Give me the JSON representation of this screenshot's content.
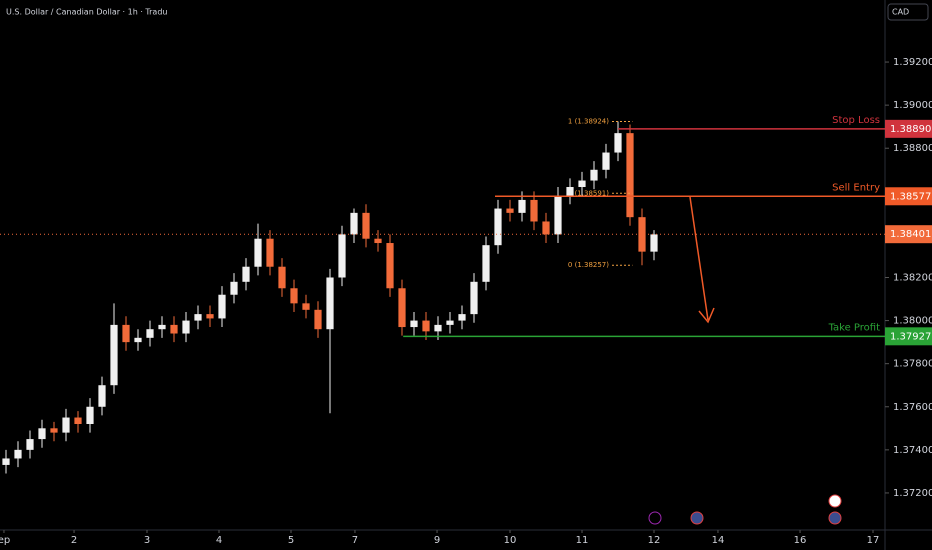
{
  "chart_data": {
    "type": "candlestick",
    "title": "U.S. Dollar / Canadian Dollar · 1h · Tradu",
    "currency": "CAD",
    "up_color": "#f0f0f0",
    "down_color": "#f26b3a",
    "xlim": [
      0,
      73.75
    ],
    "ylim": [
      1.37028,
      1.39488
    ],
    "xticks": [
      {
        "value": 0.33,
        "label": "ep"
      },
      {
        "value": 6.17,
        "label": "2"
      },
      {
        "value": 12.25,
        "label": "3"
      },
      {
        "value": 18.25,
        "label": "4"
      },
      {
        "value": 24.25,
        "label": "5"
      },
      {
        "value": 29.58,
        "label": "7"
      },
      {
        "value": 36.42,
        "label": "9"
      },
      {
        "value": 42.5,
        "label": "10"
      },
      {
        "value": 48.5,
        "label": "11"
      },
      {
        "value": 54.5,
        "label": "12"
      },
      {
        "value": 59.83,
        "label": "14"
      },
      {
        "value": 66.67,
        "label": "16"
      },
      {
        "value": 72.75,
        "label": "17"
      }
    ],
    "yticks": [
      {
        "value": 1.392,
        "label": "1.39200"
      },
      {
        "value": 1.39,
        "label": "1.39000"
      },
      {
        "value": 1.388,
        "label": "1.38800"
      },
      {
        "value": 1.382,
        "label": "1.38200"
      },
      {
        "value": 1.38,
        "label": "1.38000"
      },
      {
        "value": 1.378,
        "label": "1.37800"
      },
      {
        "value": 1.376,
        "label": "1.37600"
      },
      {
        "value": 1.374,
        "label": "1.37400"
      },
      {
        "value": 1.372,
        "label": "1.37200"
      }
    ],
    "candles": {
      "x": [
        0.5,
        1.5,
        2.5,
        3.5,
        4.5,
        5.5,
        6.5,
        7.5,
        8.5,
        9.5,
        10.5,
        11.5,
        12.5,
        13.5,
        14.5,
        15.5,
        16.5,
        17.5,
        18.5,
        19.5,
        20.5,
        21.5,
        22.5,
        23.5,
        24.5,
        25.5,
        26.5,
        27.5,
        28.5,
        29.5,
        30.5,
        31.5,
        32.5,
        33.5,
        34.5,
        35.5,
        36.5,
        37.5,
        38.5,
        39.5,
        40.5,
        41.5,
        42.5,
        43.5,
        44.5,
        45.5,
        46.5,
        47.5,
        48.5,
        49.5,
        50.5,
        51.5,
        52.5,
        53.5,
        54.5
      ],
      "open": [
        1.3733,
        1.3736,
        1.374,
        1.3745,
        1.375,
        1.3748,
        1.3755,
        1.3752,
        1.376,
        1.377,
        1.3798,
        1.379,
        1.3792,
        1.3796,
        1.3798,
        1.3794,
        1.38,
        1.3803,
        1.3801,
        1.3812,
        1.3818,
        1.3825,
        1.3838,
        1.3825,
        1.3815,
        1.3808,
        1.3805,
        1.3796,
        1.382,
        1.384,
        1.385,
        1.3838,
        1.3836,
        1.3815,
        1.3797,
        1.38,
        1.3795,
        1.3798,
        1.38,
        1.3803,
        1.3818,
        1.3835,
        1.3852,
        1.385,
        1.3856,
        1.3846,
        1.384,
        1.3858,
        1.3862,
        1.3865,
        1.387,
        1.3878,
        1.3887,
        1.3848,
        1.3832
      ],
      "high": [
        1.374,
        1.3744,
        1.3749,
        1.3754,
        1.3753,
        1.3759,
        1.3758,
        1.3764,
        1.3774,
        1.3808,
        1.3802,
        1.3796,
        1.38,
        1.3802,
        1.3802,
        1.3804,
        1.3807,
        1.3807,
        1.3816,
        1.3822,
        1.3829,
        1.3845,
        1.3842,
        1.3829,
        1.3819,
        1.3812,
        1.3809,
        1.3824,
        1.3844,
        1.3852,
        1.3854,
        1.3842,
        1.384,
        1.3819,
        1.3804,
        1.3804,
        1.3802,
        1.3804,
        1.3807,
        1.3822,
        1.3839,
        1.3856,
        1.3856,
        1.386,
        1.386,
        1.385,
        1.3862,
        1.3866,
        1.3869,
        1.3874,
        1.3882,
        1.38924,
        1.3891,
        1.3852,
        1.3842
      ],
      "low": [
        1.3729,
        1.3732,
        1.3736,
        1.3741,
        1.3744,
        1.3744,
        1.3748,
        1.3748,
        1.3756,
        1.3766,
        1.3786,
        1.3786,
        1.3788,
        1.3792,
        1.379,
        1.379,
        1.3796,
        1.3797,
        1.3797,
        1.3808,
        1.3814,
        1.3821,
        1.3821,
        1.3811,
        1.3804,
        1.3801,
        1.3792,
        1.3757,
        1.3816,
        1.3836,
        1.3834,
        1.3832,
        1.3811,
        1.3793,
        1.3793,
        1.3791,
        1.3791,
        1.3794,
        1.3796,
        1.3799,
        1.3814,
        1.3831,
        1.3846,
        1.3846,
        1.3842,
        1.3836,
        1.3836,
        1.3854,
        1.3858,
        1.3861,
        1.3866,
        1.3874,
        1.3844,
        1.38257,
        1.3828
      ],
      "close": [
        1.3736,
        1.374,
        1.3745,
        1.375,
        1.3748,
        1.3755,
        1.3752,
        1.376,
        1.377,
        1.3798,
        1.379,
        1.3792,
        1.3796,
        1.3798,
        1.3794,
        1.38,
        1.3803,
        1.3801,
        1.3812,
        1.3818,
        1.3825,
        1.3838,
        1.3825,
        1.3815,
        1.3808,
        1.3805,
        1.3796,
        1.382,
        1.384,
        1.385,
        1.3838,
        1.3836,
        1.3815,
        1.3797,
        1.38,
        1.3795,
        1.3798,
        1.38,
        1.3803,
        1.3818,
        1.3835,
        1.3852,
        1.385,
        1.3856,
        1.3846,
        1.384,
        1.3858,
        1.3862,
        1.3865,
        1.387,
        1.3878,
        1.3887,
        1.3848,
        1.3832,
        1.384
      ]
    },
    "current": {
      "value": 1.38401,
      "label": "1.38401",
      "color": "#f26b3a"
    },
    "levels": [
      {
        "name": "Stop Loss",
        "value": 1.3889,
        "label": "1.38890",
        "start_x": 51.5,
        "color": "#d0333d"
      },
      {
        "name": "Sell Entry",
        "value": 1.38577,
        "label": "1.38577",
        "start_x": 41.25,
        "color": "#f05a28"
      },
      {
        "name": "Take Profit",
        "value": 1.37927,
        "label": "1.37927",
        "start_x": 33.6,
        "color": "#2aa336"
      }
    ],
    "fib": [
      {
        "value": 1.38924,
        "label": "1 (1.38924)"
      },
      {
        "value": 1.38591,
        "label": "(1.38591)"
      },
      {
        "value": 1.38257,
        "label": "0 (1.38257)"
      }
    ],
    "fib_x": [
      51.0,
      52.7
    ],
    "fib_color": "#f0a040"
  }
}
